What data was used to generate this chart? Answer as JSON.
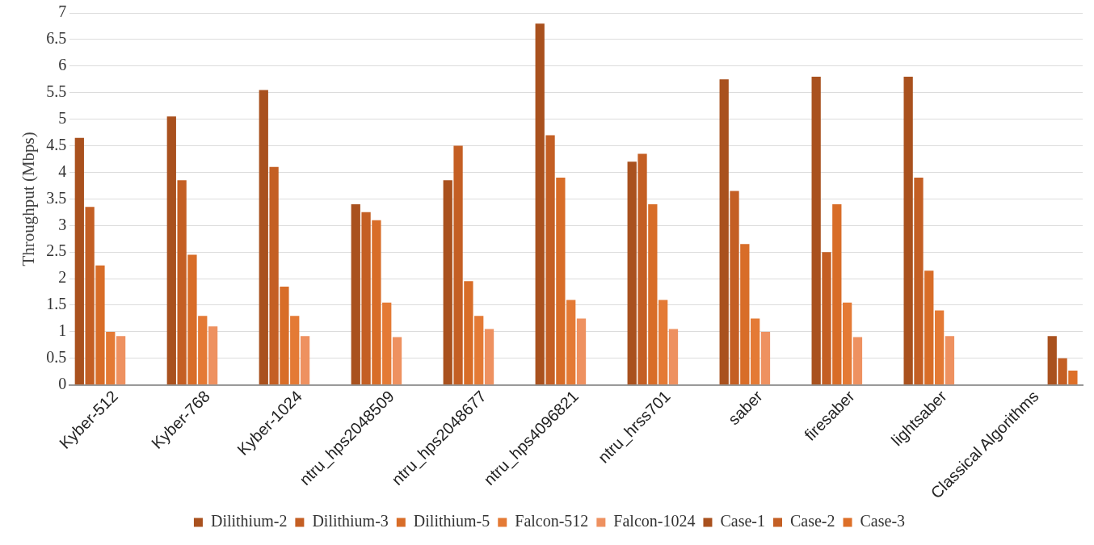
{
  "chart_data": {
    "type": "bar",
    "ylabel": "Throughput (Mbps)",
    "categories": [
      "Kyber-512",
      "Kyber-768",
      "Kyber-1024",
      "ntru_hps2048509",
      "ntru_hps2048677",
      "ntru_hps4096821",
      "ntru_hrss701",
      "saber",
      "firesaber",
      "lightsaber",
      "Classical Algorithms"
    ],
    "series": [
      {
        "name": "Dilithium-2",
        "color": "#a9511e",
        "values": [
          4.65,
          5.05,
          5.55,
          3.4,
          3.85,
          6.8,
          4.2,
          5.75,
          5.8,
          5.8,
          null
        ]
      },
      {
        "name": "Dilithium-3",
        "color": "#c45f24",
        "values": [
          3.35,
          3.85,
          4.1,
          3.25,
          4.5,
          4.7,
          4.35,
          3.65,
          2.5,
          3.9,
          null
        ]
      },
      {
        "name": "Dilithium-5",
        "color": "#d86d28",
        "values": [
          2.25,
          2.45,
          1.85,
          3.1,
          1.95,
          3.9,
          3.4,
          2.65,
          3.4,
          2.15,
          null
        ]
      },
      {
        "name": "Falcon-512",
        "color": "#e47a35",
        "values": [
          1.0,
          1.3,
          1.3,
          1.55,
          1.3,
          1.6,
          1.6,
          1.25,
          1.55,
          1.4,
          null
        ]
      },
      {
        "name": "Falcon-1024",
        "color": "#ee9160",
        "values": [
          0.92,
          1.1,
          0.92,
          0.9,
          1.05,
          1.25,
          1.05,
          1.0,
          0.9,
          0.92,
          null
        ]
      },
      {
        "name": "Case-1",
        "color": "#a9511e",
        "values": [
          null,
          null,
          null,
          null,
          null,
          null,
          null,
          null,
          null,
          null,
          0.92
        ]
      },
      {
        "name": "Case-2",
        "color": "#c45f24",
        "values": [
          null,
          null,
          null,
          null,
          null,
          null,
          null,
          null,
          null,
          null,
          0.5
        ]
      },
      {
        "name": "Case-3",
        "color": "#dd6f28",
        "values": [
          null,
          null,
          null,
          null,
          null,
          null,
          null,
          null,
          null,
          null,
          0.27
        ]
      }
    ],
    "ylim": [
      0,
      7
    ],
    "yticks": [
      0,
      0.5,
      1,
      1.5,
      2,
      2.5,
      3,
      3.5,
      4,
      4.5,
      5,
      5.5,
      6,
      6.5,
      7
    ],
    "grid": "y",
    "legend": "bottom"
  }
}
